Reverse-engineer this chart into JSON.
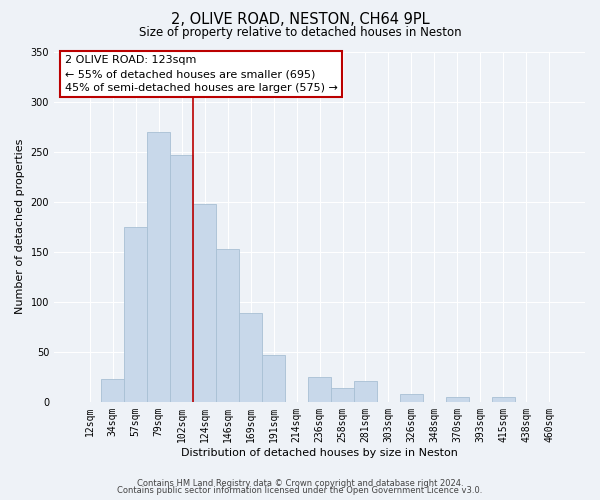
{
  "title": "2, OLIVE ROAD, NESTON, CH64 9PL",
  "subtitle": "Size of property relative to detached houses in Neston",
  "xlabel": "Distribution of detached houses by size in Neston",
  "ylabel": "Number of detached properties",
  "bar_labels": [
    "12sqm",
    "34sqm",
    "57sqm",
    "79sqm",
    "102sqm",
    "124sqm",
    "146sqm",
    "169sqm",
    "191sqm",
    "214sqm",
    "236sqm",
    "258sqm",
    "281sqm",
    "303sqm",
    "326sqm",
    "348sqm",
    "370sqm",
    "393sqm",
    "415sqm",
    "438sqm",
    "460sqm"
  ],
  "bar_values": [
    0,
    23,
    175,
    270,
    247,
    198,
    153,
    89,
    47,
    0,
    25,
    14,
    21,
    0,
    8,
    0,
    5,
    0,
    5,
    0,
    0
  ],
  "bar_color": "#c8d8ea",
  "bar_edge_color": "#a8c0d4",
  "vline_color": "#bb0000",
  "vline_x_index": 5,
  "ylim": [
    0,
    350
  ],
  "yticks": [
    0,
    50,
    100,
    150,
    200,
    250,
    300,
    350
  ],
  "annotation_title": "2 OLIVE ROAD: 123sqm",
  "annotation_line1": "← 55% of detached houses are smaller (695)",
  "annotation_line2": "45% of semi-detached houses are larger (575) →",
  "annotation_box_color": "#ffffff",
  "annotation_box_edge": "#bb0000",
  "footer1": "Contains HM Land Registry data © Crown copyright and database right 2024.",
  "footer2": "Contains public sector information licensed under the Open Government Licence v3.0.",
  "background_color": "#eef2f7",
  "grid_color": "#ffffff",
  "title_fontsize": 10.5,
  "subtitle_fontsize": 8.5,
  "axis_label_fontsize": 8,
  "tick_fontsize": 7,
  "footer_fontsize": 6,
  "annotation_fontsize": 8
}
